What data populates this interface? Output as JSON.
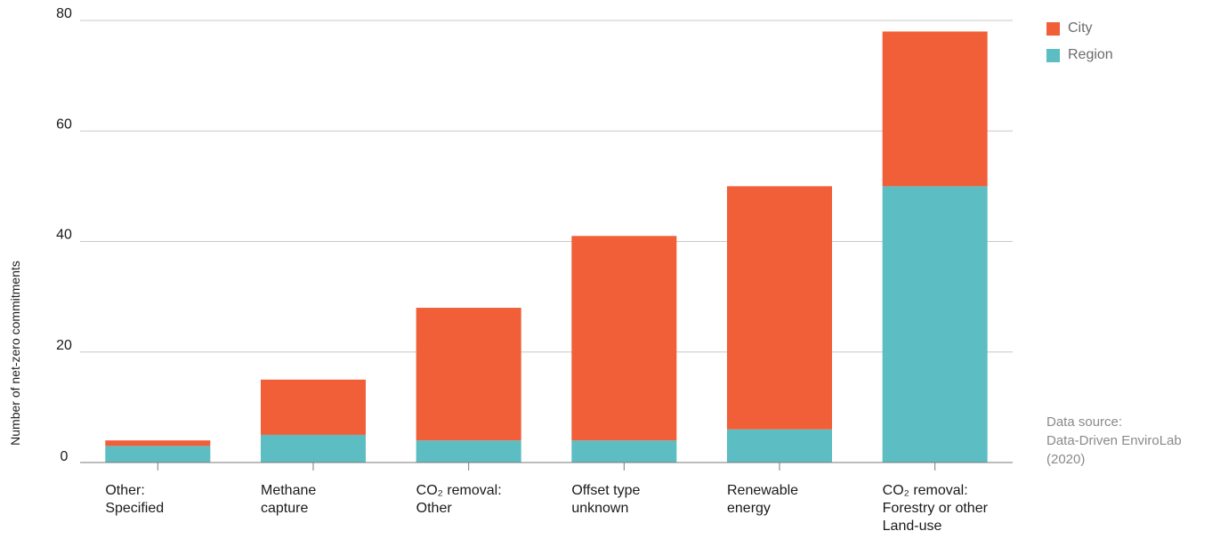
{
  "chart_data": {
    "type": "bar",
    "stacked": true,
    "categories": [
      [
        "Other:",
        "Specified"
      ],
      [
        "Methane",
        "capture"
      ],
      [
        "CO₂ removal:",
        "Other"
      ],
      [
        "Offset type",
        "unknown"
      ],
      [
        "Renewable",
        "energy"
      ],
      [
        "CO₂ removal:",
        "Forestry or other",
        "Land-use"
      ]
    ],
    "series": [
      {
        "name": "Region",
        "color": "#5cbdc2",
        "values": [
          3,
          5,
          4,
          4,
          6,
          50
        ]
      },
      {
        "name": "City",
        "color": "#f05f38",
        "values": [
          1,
          10,
          24,
          37,
          44,
          28
        ]
      }
    ],
    "ylabel": "Number of net-zero commitments",
    "xlabel": "",
    "ylim": [
      0,
      80
    ],
    "yticks": [
      0,
      20,
      40,
      60,
      80
    ],
    "grid": true,
    "legend_position": "top-right",
    "legend": [
      {
        "name": "City",
        "color": "#f05f38"
      },
      {
        "name": "Region",
        "color": "#5cbdc2"
      }
    ]
  },
  "source": {
    "lines": [
      "Data source:",
      "Data-Driven EnviroLab",
      "(2020)"
    ]
  }
}
